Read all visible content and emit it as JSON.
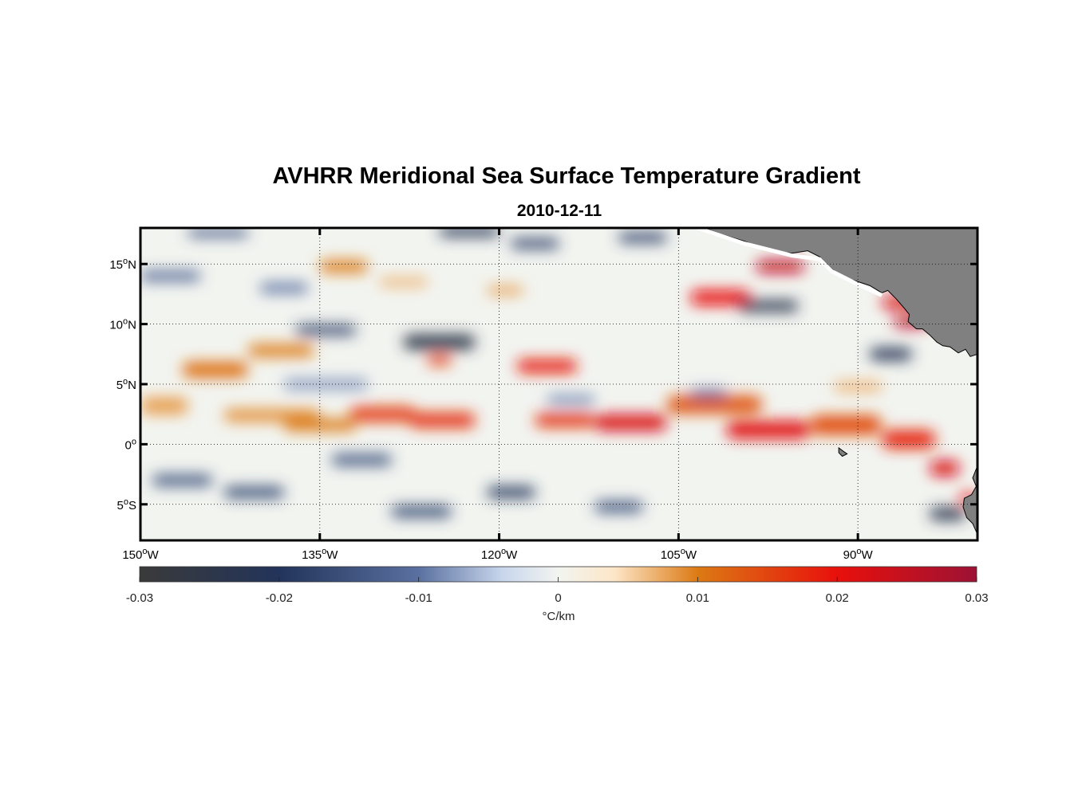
{
  "figure": {
    "title": "AVHRR Meridional Sea Surface Temperature Gradient",
    "subtitle": "2010-12-11"
  },
  "map": {
    "lon_range": [
      -150,
      -80
    ],
    "lat_range": [
      -8,
      18
    ],
    "land_color": "#808080",
    "grid": "dotted",
    "x_ticks": [
      {
        "value": -150,
        "label": "150",
        "suffix": "W"
      },
      {
        "value": -135,
        "label": "135",
        "suffix": "W"
      },
      {
        "value": -120,
        "label": "120",
        "suffix": "W"
      },
      {
        "value": -105,
        "label": "105",
        "suffix": "W"
      },
      {
        "value": -90,
        "label": "90",
        "suffix": "W"
      }
    ],
    "y_ticks": [
      {
        "value": 15,
        "label": "15",
        "suffix": "N"
      },
      {
        "value": 10,
        "label": "10",
        "suffix": "N"
      },
      {
        "value": 5,
        "label": "5",
        "suffix": "N"
      },
      {
        "value": 0,
        "label": "0",
        "suffix": ""
      },
      {
        "value": -5,
        "label": "5",
        "suffix": "S"
      }
    ],
    "degree_symbol": "o",
    "features": [
      {
        "lon1": -150,
        "lon2": -146,
        "lat": 3.2,
        "w": 1.4,
        "v": 0.008
      },
      {
        "lon1": -146.5,
        "lon2": -141,
        "lat": 6.2,
        "w": 1.3,
        "v": 0.011
      },
      {
        "lon1": -141,
        "lon2": -135.5,
        "lat": 7.8,
        "w": 1.0,
        "v": 0.01
      },
      {
        "lon1": -143,
        "lon2": -135,
        "lat": 2.4,
        "w": 1.0,
        "v": 0.009
      },
      {
        "lon1": -138,
        "lon2": -132,
        "lat": 1.6,
        "w": 1.0,
        "v": 0.01
      },
      {
        "lon1": -135,
        "lon2": -131,
        "lat": 14.8,
        "w": 1.0,
        "v": 0.01
      },
      {
        "lon1": -132.5,
        "lon2": -127,
        "lat": 2.5,
        "w": 1.2,
        "v": 0.016
      },
      {
        "lon1": -127.5,
        "lon2": -122,
        "lat": 2.0,
        "w": 1.2,
        "v": 0.017
      },
      {
        "lon1": -126,
        "lon2": -124,
        "lat": 7.0,
        "w": 0.8,
        "v": 0.016
      },
      {
        "lon1": -118.5,
        "lon2": -113.5,
        "lat": 6.5,
        "w": 1.1,
        "v": 0.019
      },
      {
        "lon1": -117,
        "lon2": -112,
        "lat": 2.0,
        "w": 1.1,
        "v": 0.017
      },
      {
        "lon1": -112,
        "lon2": -106,
        "lat": 1.8,
        "w": 1.3,
        "v": 0.022
      },
      {
        "lon1": -106,
        "lon2": -98,
        "lat": 3.3,
        "w": 1.5,
        "v": 0.013
      },
      {
        "lon1": -101,
        "lon2": -94,
        "lat": 1.2,
        "w": 1.4,
        "v": 0.021
      },
      {
        "lon1": -94,
        "lon2": -88,
        "lat": 1.6,
        "w": 1.6,
        "v": 0.014
      },
      {
        "lon1": -88,
        "lon2": -83.5,
        "lat": 0.4,
        "w": 1.5,
        "v": 0.018
      },
      {
        "lon1": -84,
        "lon2": -81.5,
        "lat": -2.0,
        "w": 1.2,
        "v": 0.022
      },
      {
        "lon1": -104,
        "lon2": -99,
        "lat": 12.2,
        "w": 1.2,
        "v": 0.02
      },
      {
        "lon1": -98.5,
        "lon2": -94.5,
        "lat": 14.8,
        "w": 1.0,
        "v": 0.025
      },
      {
        "lon1": -88,
        "lon2": -84.5,
        "lat": 11.8,
        "w": 1.0,
        "v": 0.022
      },
      {
        "lon1": -87,
        "lon2": -84,
        "lat": 10.2,
        "w": 0.9,
        "v": 0.026
      },
      {
        "lon1": -81.5,
        "lon2": -80,
        "lat": -4.5,
        "w": 0.8,
        "v": 0.02
      },
      {
        "lon1": -128,
        "lon2": -122,
        "lat": 8.5,
        "w": 1.2,
        "v": -0.025
      },
      {
        "lon1": -137,
        "lon2": -132,
        "lat": 9.5,
        "w": 0.8,
        "v": -0.018
      },
      {
        "lon1": -125,
        "lon2": -120,
        "lat": 17.7,
        "w": 0.8,
        "v": -0.022
      },
      {
        "lon1": -119,
        "lon2": -115,
        "lat": 16.7,
        "w": 0.8,
        "v": -0.018
      },
      {
        "lon1": -110,
        "lon2": -106,
        "lat": 17.2,
        "w": 0.8,
        "v": -0.018
      },
      {
        "lon1": -100,
        "lon2": -95,
        "lat": 11.5,
        "w": 0.9,
        "v": -0.024
      },
      {
        "lon1": -89,
        "lon2": -85.5,
        "lat": 7.5,
        "w": 1.0,
        "v": -0.022
      },
      {
        "lon1": -149,
        "lon2": -144,
        "lat": -3.0,
        "w": 0.9,
        "v": -0.015
      },
      {
        "lon1": -143,
        "lon2": -138,
        "lat": -4.0,
        "w": 0.9,
        "v": -0.017
      },
      {
        "lon1": -134,
        "lon2": -129,
        "lat": -1.3,
        "w": 0.9,
        "v": -0.015
      },
      {
        "lon1": -129,
        "lon2": -124,
        "lat": -5.6,
        "w": 0.9,
        "v": -0.017
      },
      {
        "lon1": -121,
        "lon2": -117,
        "lat": -4.0,
        "w": 0.9,
        "v": -0.02
      },
      {
        "lon1": -112,
        "lon2": -108,
        "lat": -5.2,
        "w": 0.9,
        "v": -0.015
      },
      {
        "lon1": -84,
        "lon2": -81,
        "lat": -5.8,
        "w": 1.0,
        "v": -0.024
      },
      {
        "lon1": -150,
        "lon2": -145,
        "lat": 14.0,
        "w": 0.8,
        "v": -0.012
      },
      {
        "lon1": -140,
        "lon2": -136,
        "lat": 13.0,
        "w": 0.8,
        "v": -0.01
      },
      {
        "lon1": -146,
        "lon2": -141,
        "lat": 17.6,
        "w": 0.7,
        "v": -0.014
      },
      {
        "lon1": -104,
        "lon2": -101,
        "lat": 4.2,
        "w": 0.7,
        "v": -0.01
      },
      {
        "lon1": -116,
        "lon2": -112,
        "lat": 3.7,
        "w": 0.7,
        "v": -0.009
      },
      {
        "lon1": -138,
        "lon2": -131,
        "lat": 5.0,
        "w": 0.8,
        "v": -0.008
      },
      {
        "lon1": -121,
        "lon2": -118,
        "lat": 12.8,
        "w": 0.7,
        "v": 0.008
      },
      {
        "lon1": -130,
        "lon2": -126,
        "lat": 13.5,
        "w": 0.7,
        "v": 0.007
      },
      {
        "lon1": -92,
        "lon2": -88,
        "lat": 4.8,
        "w": 0.8,
        "v": 0.007
      }
    ]
  },
  "colorbar": {
    "range": [
      -0.03,
      0.03
    ],
    "ticks": [
      {
        "value": -0.03,
        "label": "-0.03"
      },
      {
        "value": -0.02,
        "label": "-0.02"
      },
      {
        "value": -0.01,
        "label": "-0.01"
      },
      {
        "value": 0,
        "label": "0"
      },
      {
        "value": 0.01,
        "label": "0.01"
      },
      {
        "value": 0.02,
        "label": "0.02"
      },
      {
        "value": 0.03,
        "label": "0.03"
      }
    ],
    "units": "°C/km",
    "stops": [
      {
        "v": -0.03,
        "color": "#3a3a3a"
      },
      {
        "v": -0.02,
        "color": "#22345a"
      },
      {
        "v": -0.01,
        "color": "#5a70a0"
      },
      {
        "v": -0.004,
        "color": "#c8d6ec"
      },
      {
        "v": 0,
        "color": "#f2f4f0"
      },
      {
        "v": 0.004,
        "color": "#fde6c8"
      },
      {
        "v": 0.01,
        "color": "#dc7a14"
      },
      {
        "v": 0.02,
        "color": "#e8100c"
      },
      {
        "v": 0.03,
        "color": "#9c1234"
      }
    ]
  }
}
